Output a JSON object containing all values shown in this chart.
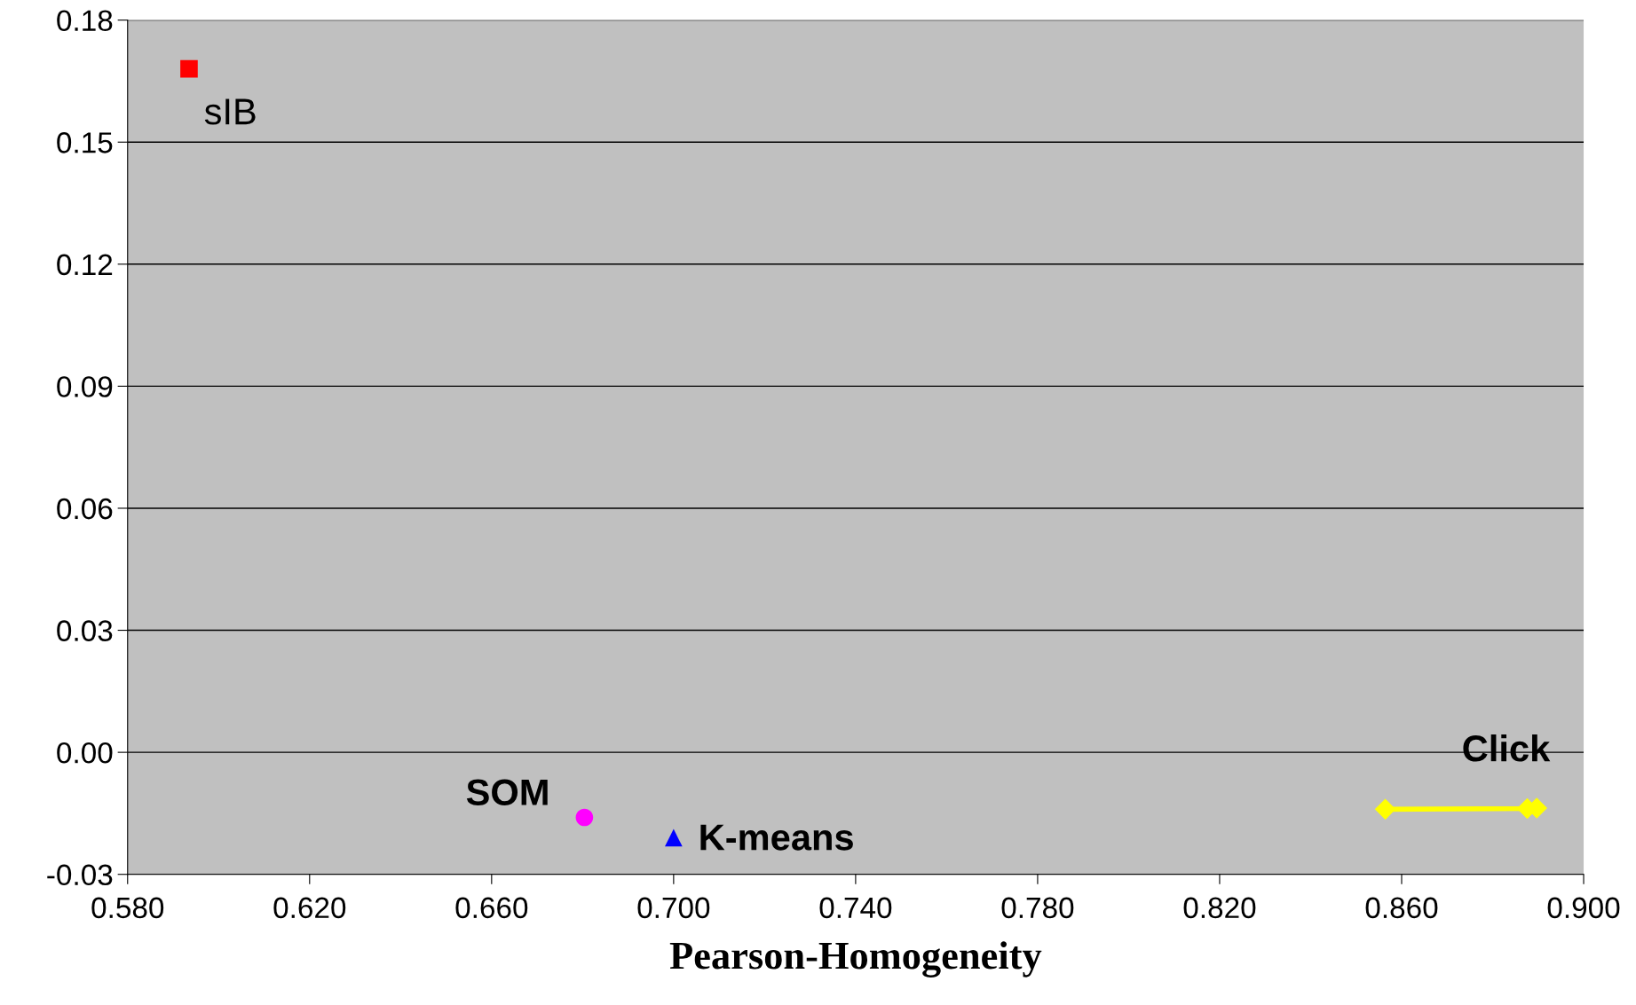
{
  "chart_data": {
    "type": "scatter",
    "xlabel": "Pearson-Homogeneity",
    "xlim": [
      0.58,
      0.9
    ],
    "ylim": [
      -0.03,
      0.18
    ],
    "xticks": [
      {
        "value": 0.58,
        "label": "0.580"
      },
      {
        "value": 0.62,
        "label": "0.620"
      },
      {
        "value": 0.66,
        "label": "0.660"
      },
      {
        "value": 0.7,
        "label": "0.700"
      },
      {
        "value": 0.74,
        "label": "0.740"
      },
      {
        "value": 0.78,
        "label": "0.780"
      },
      {
        "value": 0.82,
        "label": "0.820"
      },
      {
        "value": 0.86,
        "label": "0.860"
      },
      {
        "value": 0.9,
        "label": "0.900"
      }
    ],
    "yticks": [
      {
        "value": -0.03,
        "label": "-0.03"
      },
      {
        "value": 0.0,
        "label": "0.00"
      },
      {
        "value": 0.03,
        "label": "0.03"
      },
      {
        "value": 0.06,
        "label": "0.06"
      },
      {
        "value": 0.09,
        "label": "0.09"
      },
      {
        "value": 0.12,
        "label": "0.12"
      },
      {
        "value": 0.15,
        "label": "0.15"
      },
      {
        "value": 0.18,
        "label": "0.18"
      }
    ],
    "grid": "y",
    "legend": false,
    "series": [
      {
        "name": "sIB",
        "color": "#ff0000",
        "marker": "square",
        "x": [
          0.5935
        ],
        "values": [
          0.168
        ]
      },
      {
        "name": "SOM",
        "color": "#ff00ff",
        "marker": "circle",
        "x": [
          0.6804
        ],
        "values": [
          -0.016
        ]
      },
      {
        "name": "K-means",
        "color": "#0000ff",
        "marker": "triangle",
        "x": [
          0.7
        ],
        "values": [
          -0.021
        ]
      },
      {
        "name": "Click",
        "type": "line",
        "color": "#ffff00",
        "marker": "diamond",
        "x": [
          0.8564,
          0.8876,
          0.8897
        ],
        "values": [
          -0.014,
          -0.0138,
          -0.0137
        ]
      }
    ]
  }
}
